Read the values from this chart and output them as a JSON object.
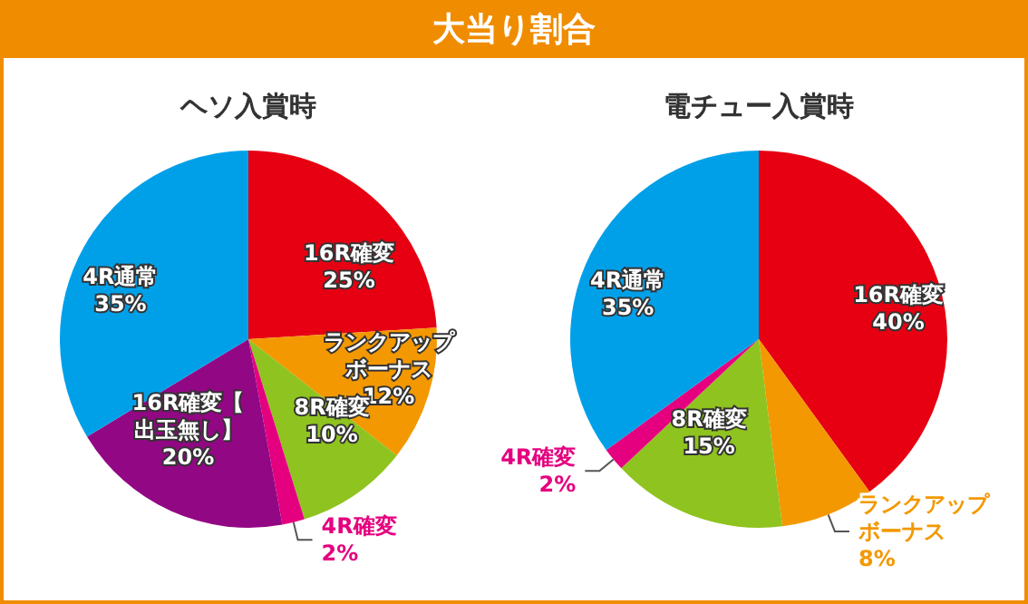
{
  "chart_data": [
    {
      "type": "pie",
      "title": "大当り割合",
      "subtitle": "ヘソ入賞時",
      "categories": [
        "16R確変",
        "ランクアップボーナス",
        "8R確変",
        "4R確変",
        "16R確変【出玉無し】",
        "4R通常"
      ],
      "values": [
        25,
        12,
        10,
        2,
        20,
        35
      ],
      "value_labels": [
        "25%",
        "12%",
        "10%",
        "2%",
        "20%",
        "35%"
      ],
      "colors": [
        "#e60012",
        "#f39800",
        "#8fc31f",
        "#e4007f",
        "#920783",
        "#00a0e9"
      ],
      "data_labels": true,
      "legend": false
    },
    {
      "type": "pie",
      "subtitle": "電チュー入賞時",
      "categories": [
        "16R確変",
        "ランクアップボーナス",
        "8R確変",
        "4R確変",
        "4R通常"
      ],
      "values": [
        40,
        8,
        15,
        2,
        35
      ],
      "value_labels": [
        "40%",
        "8%",
        "15%",
        "2%",
        "35%"
      ],
      "colors": [
        "#e60012",
        "#f39800",
        "#8fc31f",
        "#e4007f",
        "#00a0e9"
      ],
      "data_labels": true,
      "legend": false
    }
  ]
}
